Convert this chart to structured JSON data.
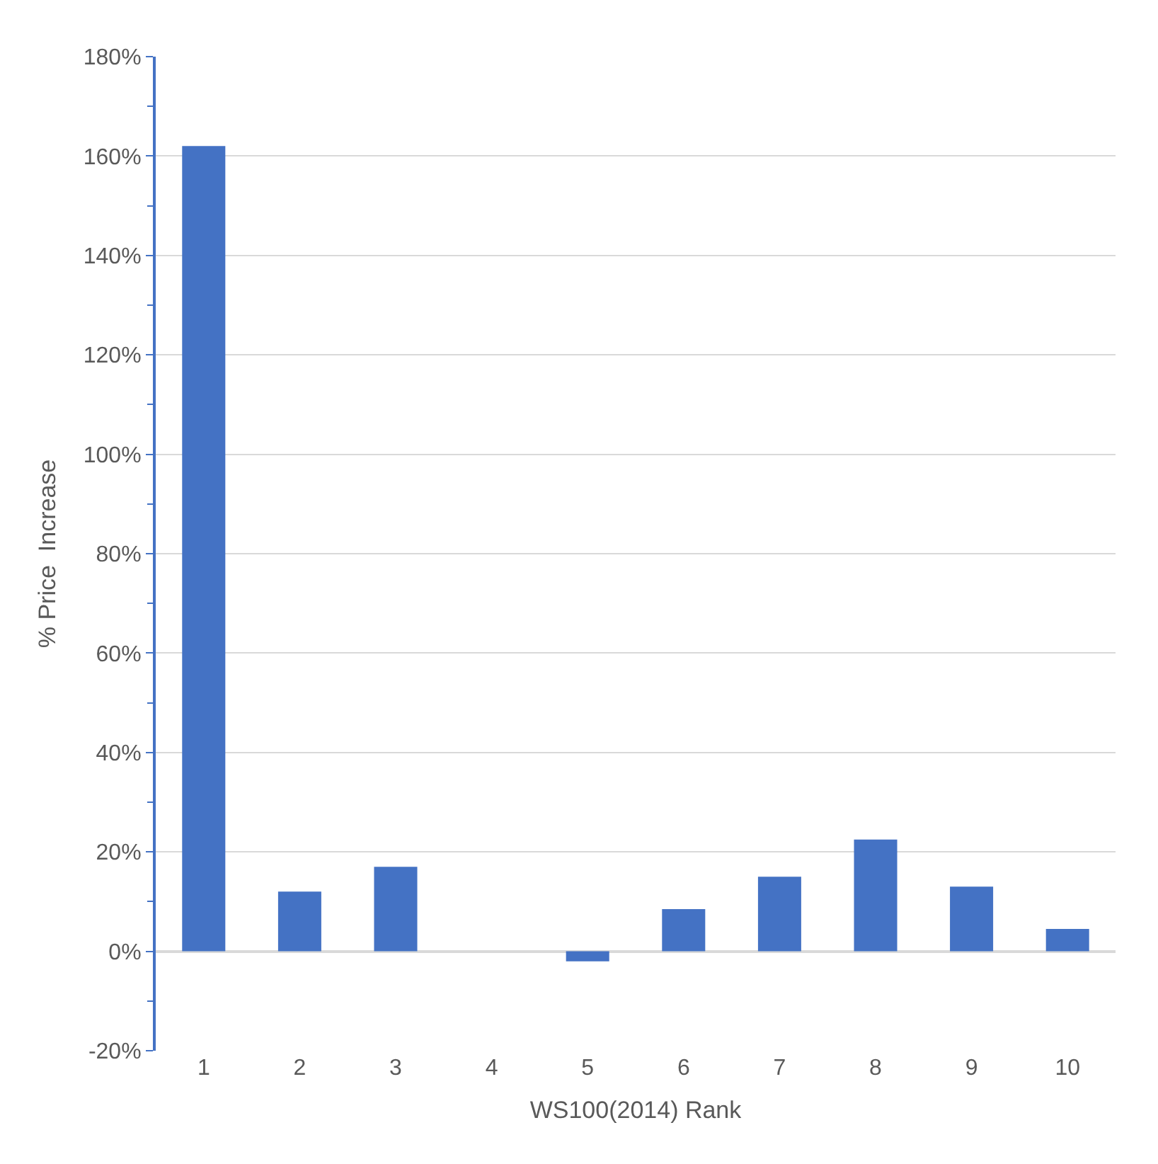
{
  "chart_data": {
    "type": "bar",
    "xlabel": "WS100(2014) Rank",
    "ylabel": "% Price  Increase",
    "categories": [
      "1",
      "2",
      "3",
      "4",
      "5",
      "6",
      "7",
      "8",
      "9",
      "10"
    ],
    "values": [
      162,
      12,
      17,
      0,
      -2,
      8.5,
      15,
      22.5,
      13,
      4.5
    ],
    "color": "#4472c4",
    "ylim": [
      -20,
      180
    ],
    "yticks": [
      {
        "value": -20,
        "label": "-20%"
      },
      {
        "value": 0,
        "label": "0%"
      },
      {
        "value": 20,
        "label": "20%"
      },
      {
        "value": 40,
        "label": "40%"
      },
      {
        "value": 60,
        "label": "60%"
      },
      {
        "value": 80,
        "label": "80%"
      },
      {
        "value": 100,
        "label": "100%"
      },
      {
        "value": 120,
        "label": "120%"
      },
      {
        "value": 140,
        "label": "140%"
      },
      {
        "value": 160,
        "label": "160%"
      },
      {
        "value": 180,
        "label": "180%"
      }
    ],
    "grid": "y"
  }
}
